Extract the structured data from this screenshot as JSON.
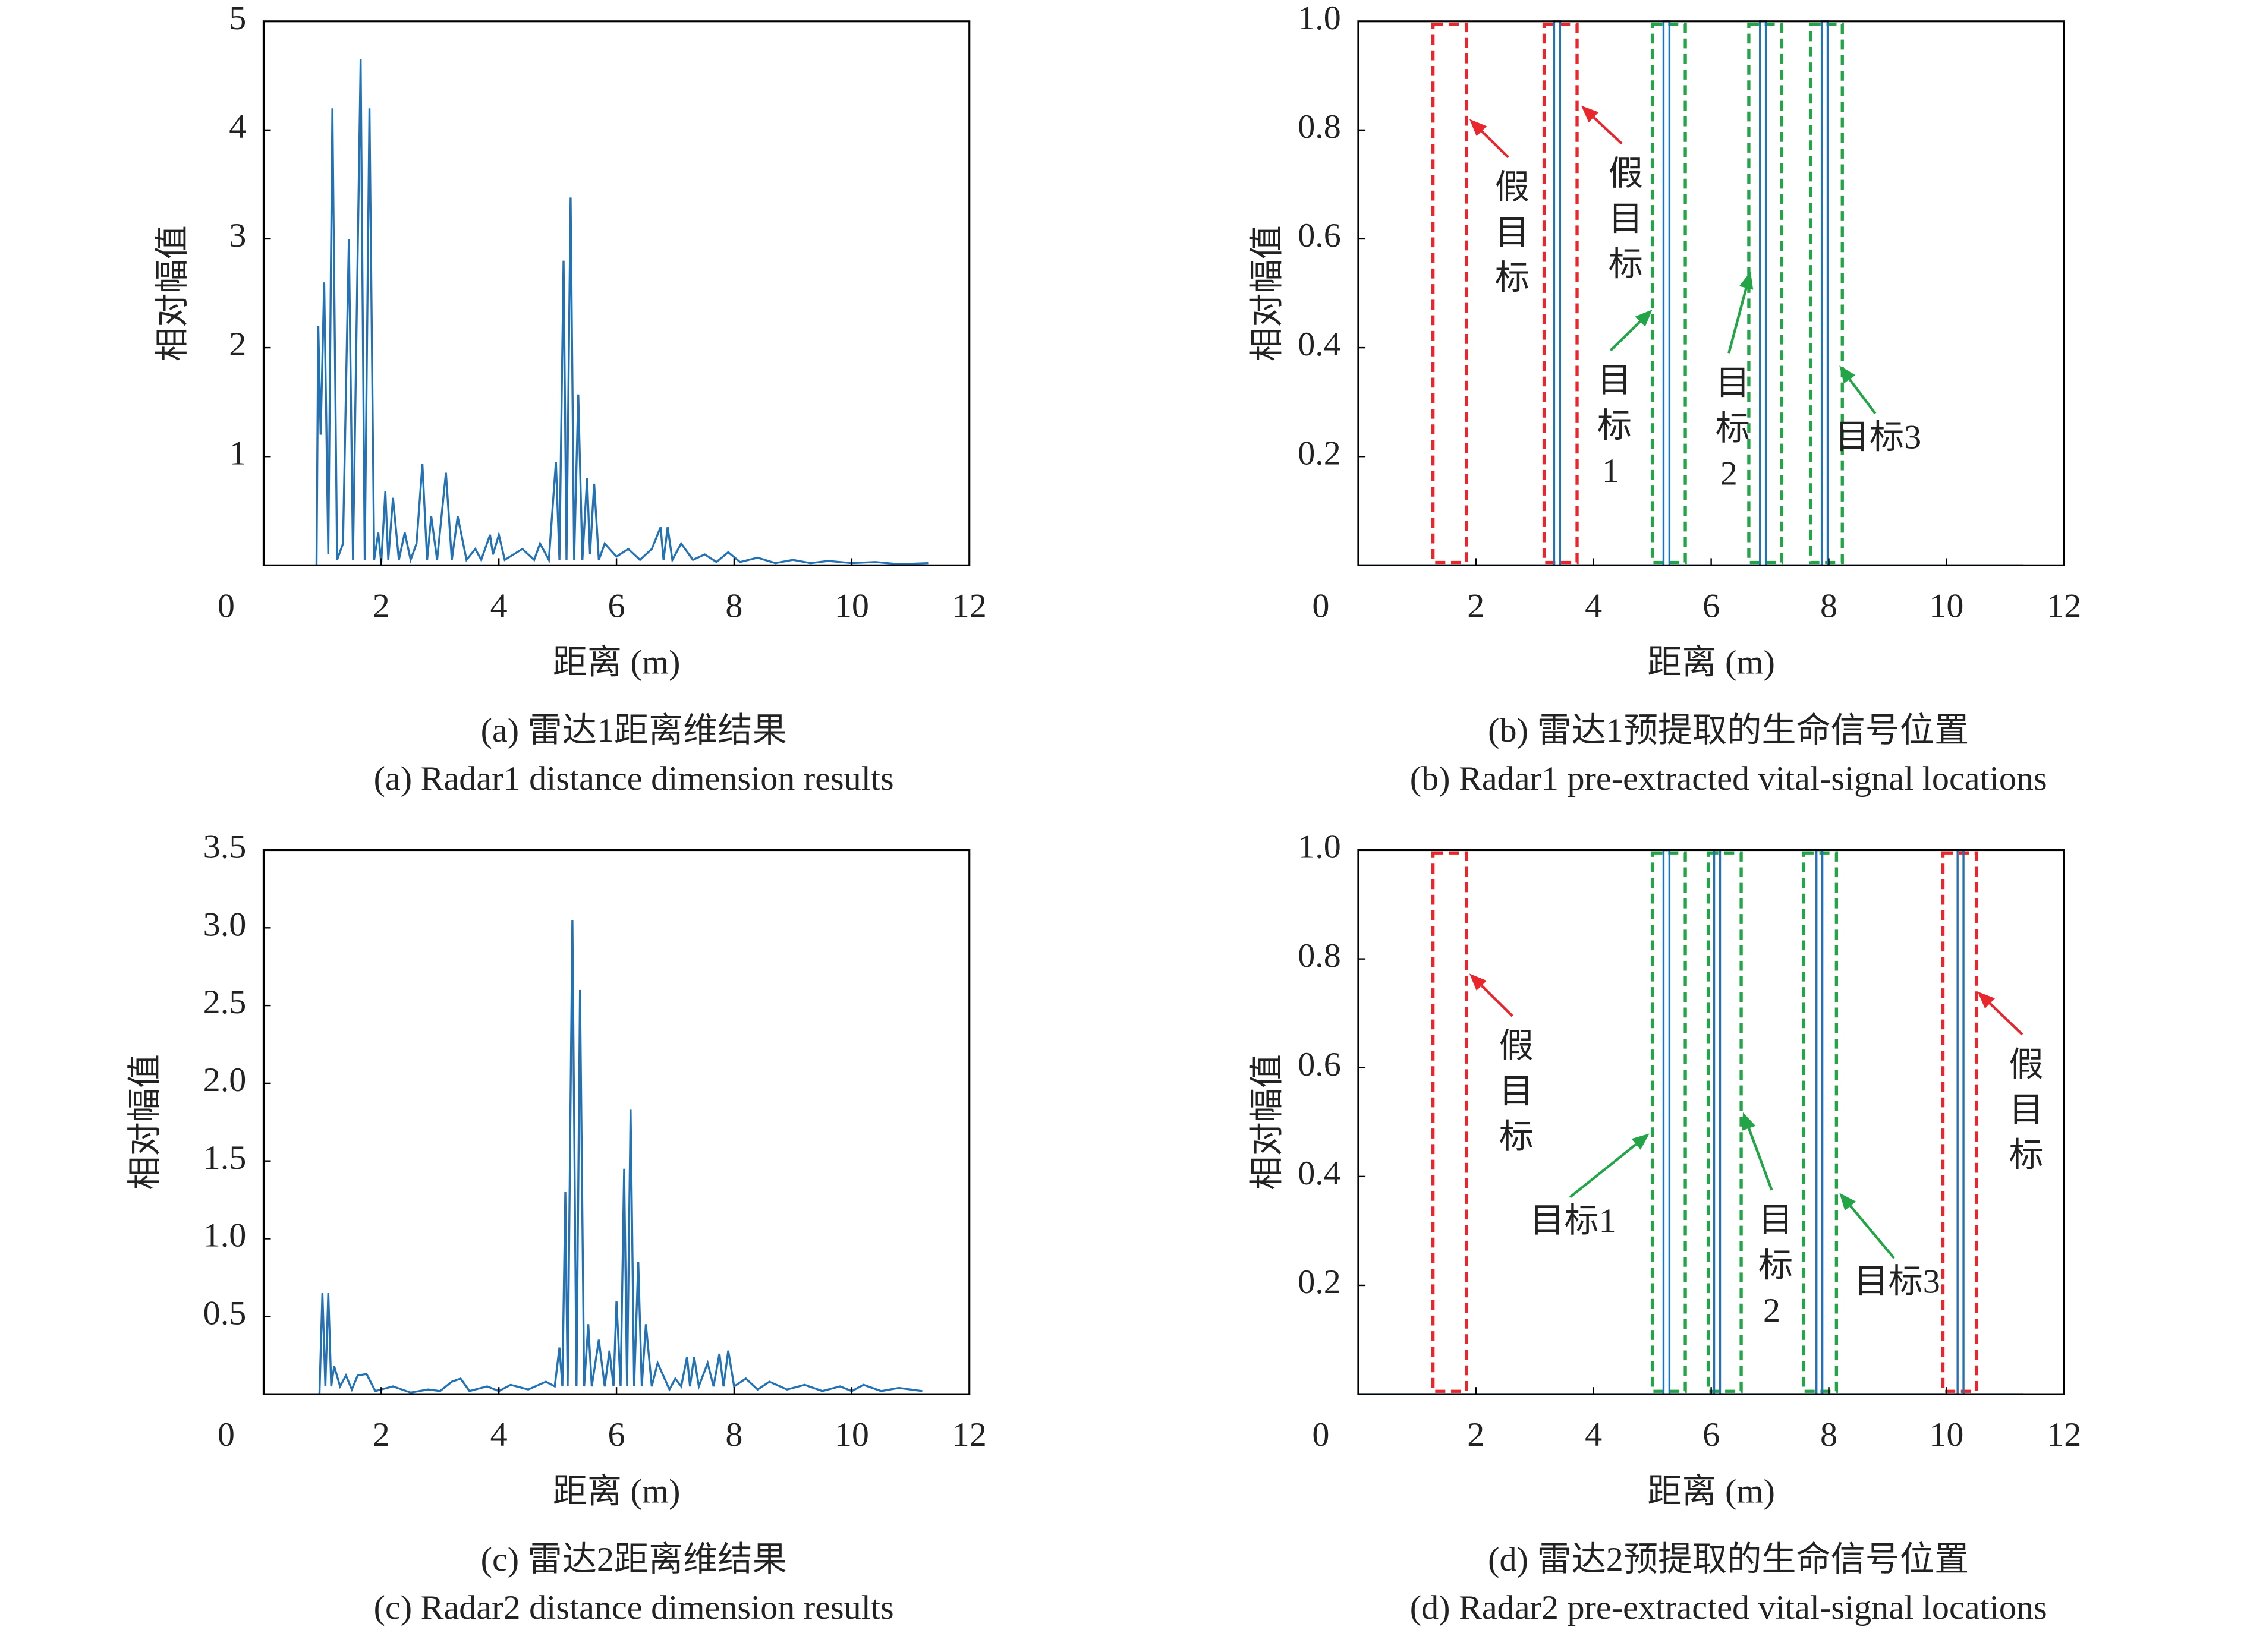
{
  "chart_data": [
    {
      "type": "line",
      "xlabel": "距离 (m)",
      "ylabel": "相对幅值",
      "caption_cn": "(a) 雷达1距离维结果",
      "caption_en": "(a) Radar1 distance dimension results",
      "xlim": [
        0,
        12
      ],
      "ylim": [
        0,
        5
      ],
      "xticks": [
        0,
        2,
        4,
        6,
        8,
        10,
        12
      ],
      "yticks": [
        1,
        2,
        3,
        4,
        5
      ],
      "series": [
        {
          "color": "#2372b5",
          "x": [
            0.9,
            0.93,
            0.97,
            1.03,
            1.1,
            1.17,
            1.25,
            1.35,
            1.45,
            1.52,
            1.65,
            1.72,
            1.8,
            1.88,
            1.95,
            2.0,
            2.07,
            2.12,
            2.2,
            2.3,
            2.4,
            2.5,
            2.6,
            2.7,
            2.78,
            2.85,
            2.95,
            3.1,
            3.2,
            3.3,
            3.45,
            3.6,
            3.7,
            3.85,
            3.9,
            4.0,
            4.1,
            4.4,
            4.6,
            4.7,
            4.85,
            4.97,
            5.03,
            5.1,
            5.15,
            5.22,
            5.28,
            5.35,
            5.42,
            5.5,
            5.55,
            5.62,
            5.7,
            5.8,
            6.0,
            6.2,
            6.4,
            6.6,
            6.75,
            6.8,
            6.87,
            6.95,
            7.1,
            7.3,
            7.5,
            7.7,
            7.9,
            8.1,
            8.4,
            8.7,
            9.0,
            9.3,
            9.6,
            10.0,
            10.4,
            10.8,
            11.3
          ],
          "values": [
            0,
            2.2,
            1.2,
            2.6,
            0.1,
            4.2,
            0.05,
            0.2,
            3.0,
            0.05,
            4.65,
            0.05,
            4.2,
            0.05,
            0.3,
            0.02,
            0.68,
            0.05,
            0.62,
            0.05,
            0.3,
            0.05,
            0.2,
            0.93,
            0.05,
            0.45,
            0.05,
            0.85,
            0.05,
            0.45,
            0.05,
            0.15,
            0.05,
            0.28,
            0.1,
            0.28,
            0.05,
            0.15,
            0.05,
            0.2,
            0.05,
            0.95,
            0.05,
            2.8,
            0.05,
            3.38,
            0.05,
            1.57,
            0.05,
            0.8,
            0.1,
            0.75,
            0.05,
            0.2,
            0.08,
            0.15,
            0.05,
            0.15,
            0.35,
            0.05,
            0.35,
            0.05,
            0.2,
            0.05,
            0.1,
            0.03,
            0.12,
            0.03,
            0.07,
            0.02,
            0.05,
            0.02,
            0.04,
            0.02,
            0.03,
            0.01,
            0.02
          ]
        }
      ]
    },
    {
      "type": "line",
      "xlabel": "距离 (m)",
      "ylabel": "相对幅值",
      "caption_cn": "(b) 雷达1预提取的生命信号位置",
      "caption_en": "(b) Radar1 pre-extracted vital-signal locations",
      "xlim": [
        0,
        12
      ],
      "ylim": [
        0,
        1
      ],
      "xticks": [
        0,
        2,
        4,
        6,
        8,
        10,
        12
      ],
      "yticks": [
        0.2,
        0.4,
        0.6,
        0.8,
        {
          "value": 1,
          "label": "1.0"
        }
      ],
      "series": [
        {
          "color": "#2372b5",
          "x": [
            0,
            3.33,
            3.33,
            3.43,
            3.43,
            5.19,
            5.19,
            5.29,
            5.29,
            6.83,
            6.83,
            6.93,
            6.93,
            7.88,
            7.88,
            7.98,
            7.98,
            11.3
          ],
          "values": [
            0,
            0,
            1,
            1,
            0,
            0,
            1,
            1,
            0,
            0,
            1,
            1,
            0,
            0,
            1,
            1,
            0,
            0
          ]
        }
      ],
      "boxes": [
        {
          "x": [
            1.27,
            1.84
          ],
          "color": "#e8262b"
        },
        {
          "x": [
            3.16,
            3.72
          ],
          "color": "#e8262b"
        },
        {
          "x": [
            5.0,
            5.56
          ],
          "color": "#22a447"
        },
        {
          "x": [
            6.64,
            7.2
          ],
          "color": "#22a447"
        },
        {
          "x": [
            7.69,
            8.23
          ],
          "color": "#22a447"
        }
      ],
      "annotations": [
        {
          "text": "假目标",
          "color": "#e8262b",
          "orientation": "vertical",
          "xy": [
            1.89,
            0.82
          ],
          "xytext": [
            2.55,
            0.75
          ]
        },
        {
          "text": "假目标",
          "color": "#e8262b",
          "orientation": "vertical",
          "xy": [
            3.79,
            0.845
          ],
          "xytext": [
            4.48,
            0.775
          ]
        },
        {
          "text": "目标1",
          "color": "#22a447",
          "orientation": "vertical",
          "xy": [
            5.0,
            0.47
          ],
          "xytext": [
            4.29,
            0.395
          ]
        },
        {
          "text": "目标2",
          "color": "#22a447",
          "orientation": "vertical",
          "xy": [
            6.67,
            0.54
          ],
          "xytext": [
            6.3,
            0.39
          ]
        },
        {
          "text": "目标3",
          "color": "#22a447",
          "orientation": "horizontal",
          "xy": [
            8.18,
            0.367
          ],
          "xytext": [
            8.79,
            0.279
          ]
        }
      ]
    },
    {
      "type": "line",
      "xlabel": "距离 (m)",
      "ylabel": "相对幅值",
      "caption_cn": "(c) 雷达2距离维结果",
      "caption_en": "(c) Radar2 distance dimension results",
      "xlim": [
        0,
        12
      ],
      "ylim": [
        0,
        3.5
      ],
      "xticks": [
        0,
        2,
        4,
        6,
        8,
        10,
        12
      ],
      "yticks": [
        0.5,
        {
          "value": 1,
          "label": "1.0"
        },
        1.5,
        {
          "value": 2,
          "label": "2.0"
        },
        2.5,
        {
          "value": 3,
          "label": "3.0"
        },
        3.5
      ],
      "series": [
        {
          "color": "#2372b5",
          "x": [
            0.95,
            1.0,
            1.05,
            1.1,
            1.15,
            1.2,
            1.3,
            1.4,
            1.5,
            1.6,
            1.75,
            1.9,
            2.2,
            2.5,
            2.8,
            3.0,
            3.2,
            3.35,
            3.5,
            3.8,
            4.0,
            4.2,
            4.5,
            4.8,
            4.95,
            5.03,
            5.08,
            5.13,
            5.17,
            5.25,
            5.32,
            5.38,
            5.45,
            5.52,
            5.58,
            5.7,
            5.8,
            5.88,
            5.95,
            6.0,
            6.07,
            6.13,
            6.18,
            6.24,
            6.3,
            6.37,
            6.43,
            6.5,
            6.6,
            6.7,
            6.9,
            7.0,
            7.1,
            7.2,
            7.25,
            7.32,
            7.4,
            7.55,
            7.65,
            7.75,
            7.82,
            7.9,
            8.0,
            8.2,
            8.4,
            8.6,
            8.9,
            9.2,
            9.5,
            9.8,
            10.0,
            10.2,
            10.5,
            10.8,
            11.2
          ],
          "values": [
            0,
            0.65,
            0.05,
            0.65,
            0.05,
            0.18,
            0.05,
            0.12,
            0.03,
            0.12,
            0.13,
            0.02,
            0.05,
            0.01,
            0.03,
            0.02,
            0.08,
            0.1,
            0.02,
            0.05,
            0.02,
            0.06,
            0.03,
            0.08,
            0.05,
            0.3,
            0.05,
            1.3,
            0.05,
            3.05,
            0.05,
            2.6,
            0.05,
            0.45,
            0.05,
            0.35,
            0.05,
            0.28,
            0.05,
            0.6,
            0.05,
            1.45,
            0.05,
            1.83,
            0.05,
            0.85,
            0.05,
            0.45,
            0.05,
            0.2,
            0.03,
            0.1,
            0.05,
            0.24,
            0.05,
            0.24,
            0.05,
            0.2,
            0.05,
            0.26,
            0.05,
            0.28,
            0.05,
            0.1,
            0.03,
            0.08,
            0.03,
            0.06,
            0.02,
            0.05,
            0.02,
            0.06,
            0.02,
            0.04,
            0.02
          ]
        }
      ]
    },
    {
      "type": "line",
      "xlabel": "距离 (m)",
      "ylabel": "相对幅值",
      "caption_cn": "(d) 雷达2预提取的生命信号位置",
      "caption_en": "(d) Radar2 pre-extracted vital-signal locations",
      "xlim": [
        0,
        12
      ],
      "ylim": [
        0,
        1
      ],
      "xticks": [
        0,
        2,
        4,
        6,
        8,
        10,
        12
      ],
      "yticks": [
        0.2,
        0.4,
        0.6,
        0.8,
        {
          "value": 1,
          "label": "1.0"
        }
      ],
      "series": [
        {
          "color": "#2372b5",
          "x": [
            0,
            5.19,
            5.19,
            5.29,
            5.29,
            6.05,
            6.05,
            6.15,
            6.15,
            7.79,
            7.79,
            7.89,
            7.89,
            10.19,
            10.19,
            10.29,
            10.29,
            11.3
          ],
          "values": [
            0,
            0,
            1,
            1,
            0,
            0,
            1,
            1,
            0,
            0,
            1,
            1,
            0,
            0,
            1,
            1,
            0,
            0
          ]
        }
      ],
      "boxes": [
        {
          "x": [
            1.27,
            1.84
          ],
          "color": "#e8262b"
        },
        {
          "x": [
            5.0,
            5.56
          ],
          "color": "#22a447"
        },
        {
          "x": [
            5.95,
            6.51
          ],
          "color": "#22a447"
        },
        {
          "x": [
            7.57,
            8.13
          ],
          "color": "#22a447"
        },
        {
          "x": [
            9.94,
            10.51
          ],
          "color": "#e8262b"
        }
      ],
      "annotations": [
        {
          "text": "假目标",
          "color": "#e8262b",
          "orientation": "vertical",
          "xy": [
            1.89,
            0.773
          ],
          "xytext": [
            2.62,
            0.695
          ]
        },
        {
          "text": "目标1",
          "color": "#22a447",
          "orientation": "horizontal",
          "xy": [
            4.95,
            0.479
          ],
          "xytext": [
            3.6,
            0.362
          ]
        },
        {
          "text": "目标2",
          "color": "#22a447",
          "orientation": "vertical",
          "xy": [
            6.54,
            0.518
          ],
          "xytext": [
            7.03,
            0.375
          ]
        },
        {
          "text": "目标3",
          "color": "#22a447",
          "orientation": "horizontal",
          "xy": [
            8.18,
            0.37
          ],
          "xytext": [
            9.11,
            0.25
          ]
        },
        {
          "text": "假目标",
          "color": "#e8262b",
          "orientation": "vertical",
          "xy": [
            10.53,
            0.74
          ],
          "xytext": [
            11.29,
            0.661
          ]
        }
      ]
    }
  ]
}
